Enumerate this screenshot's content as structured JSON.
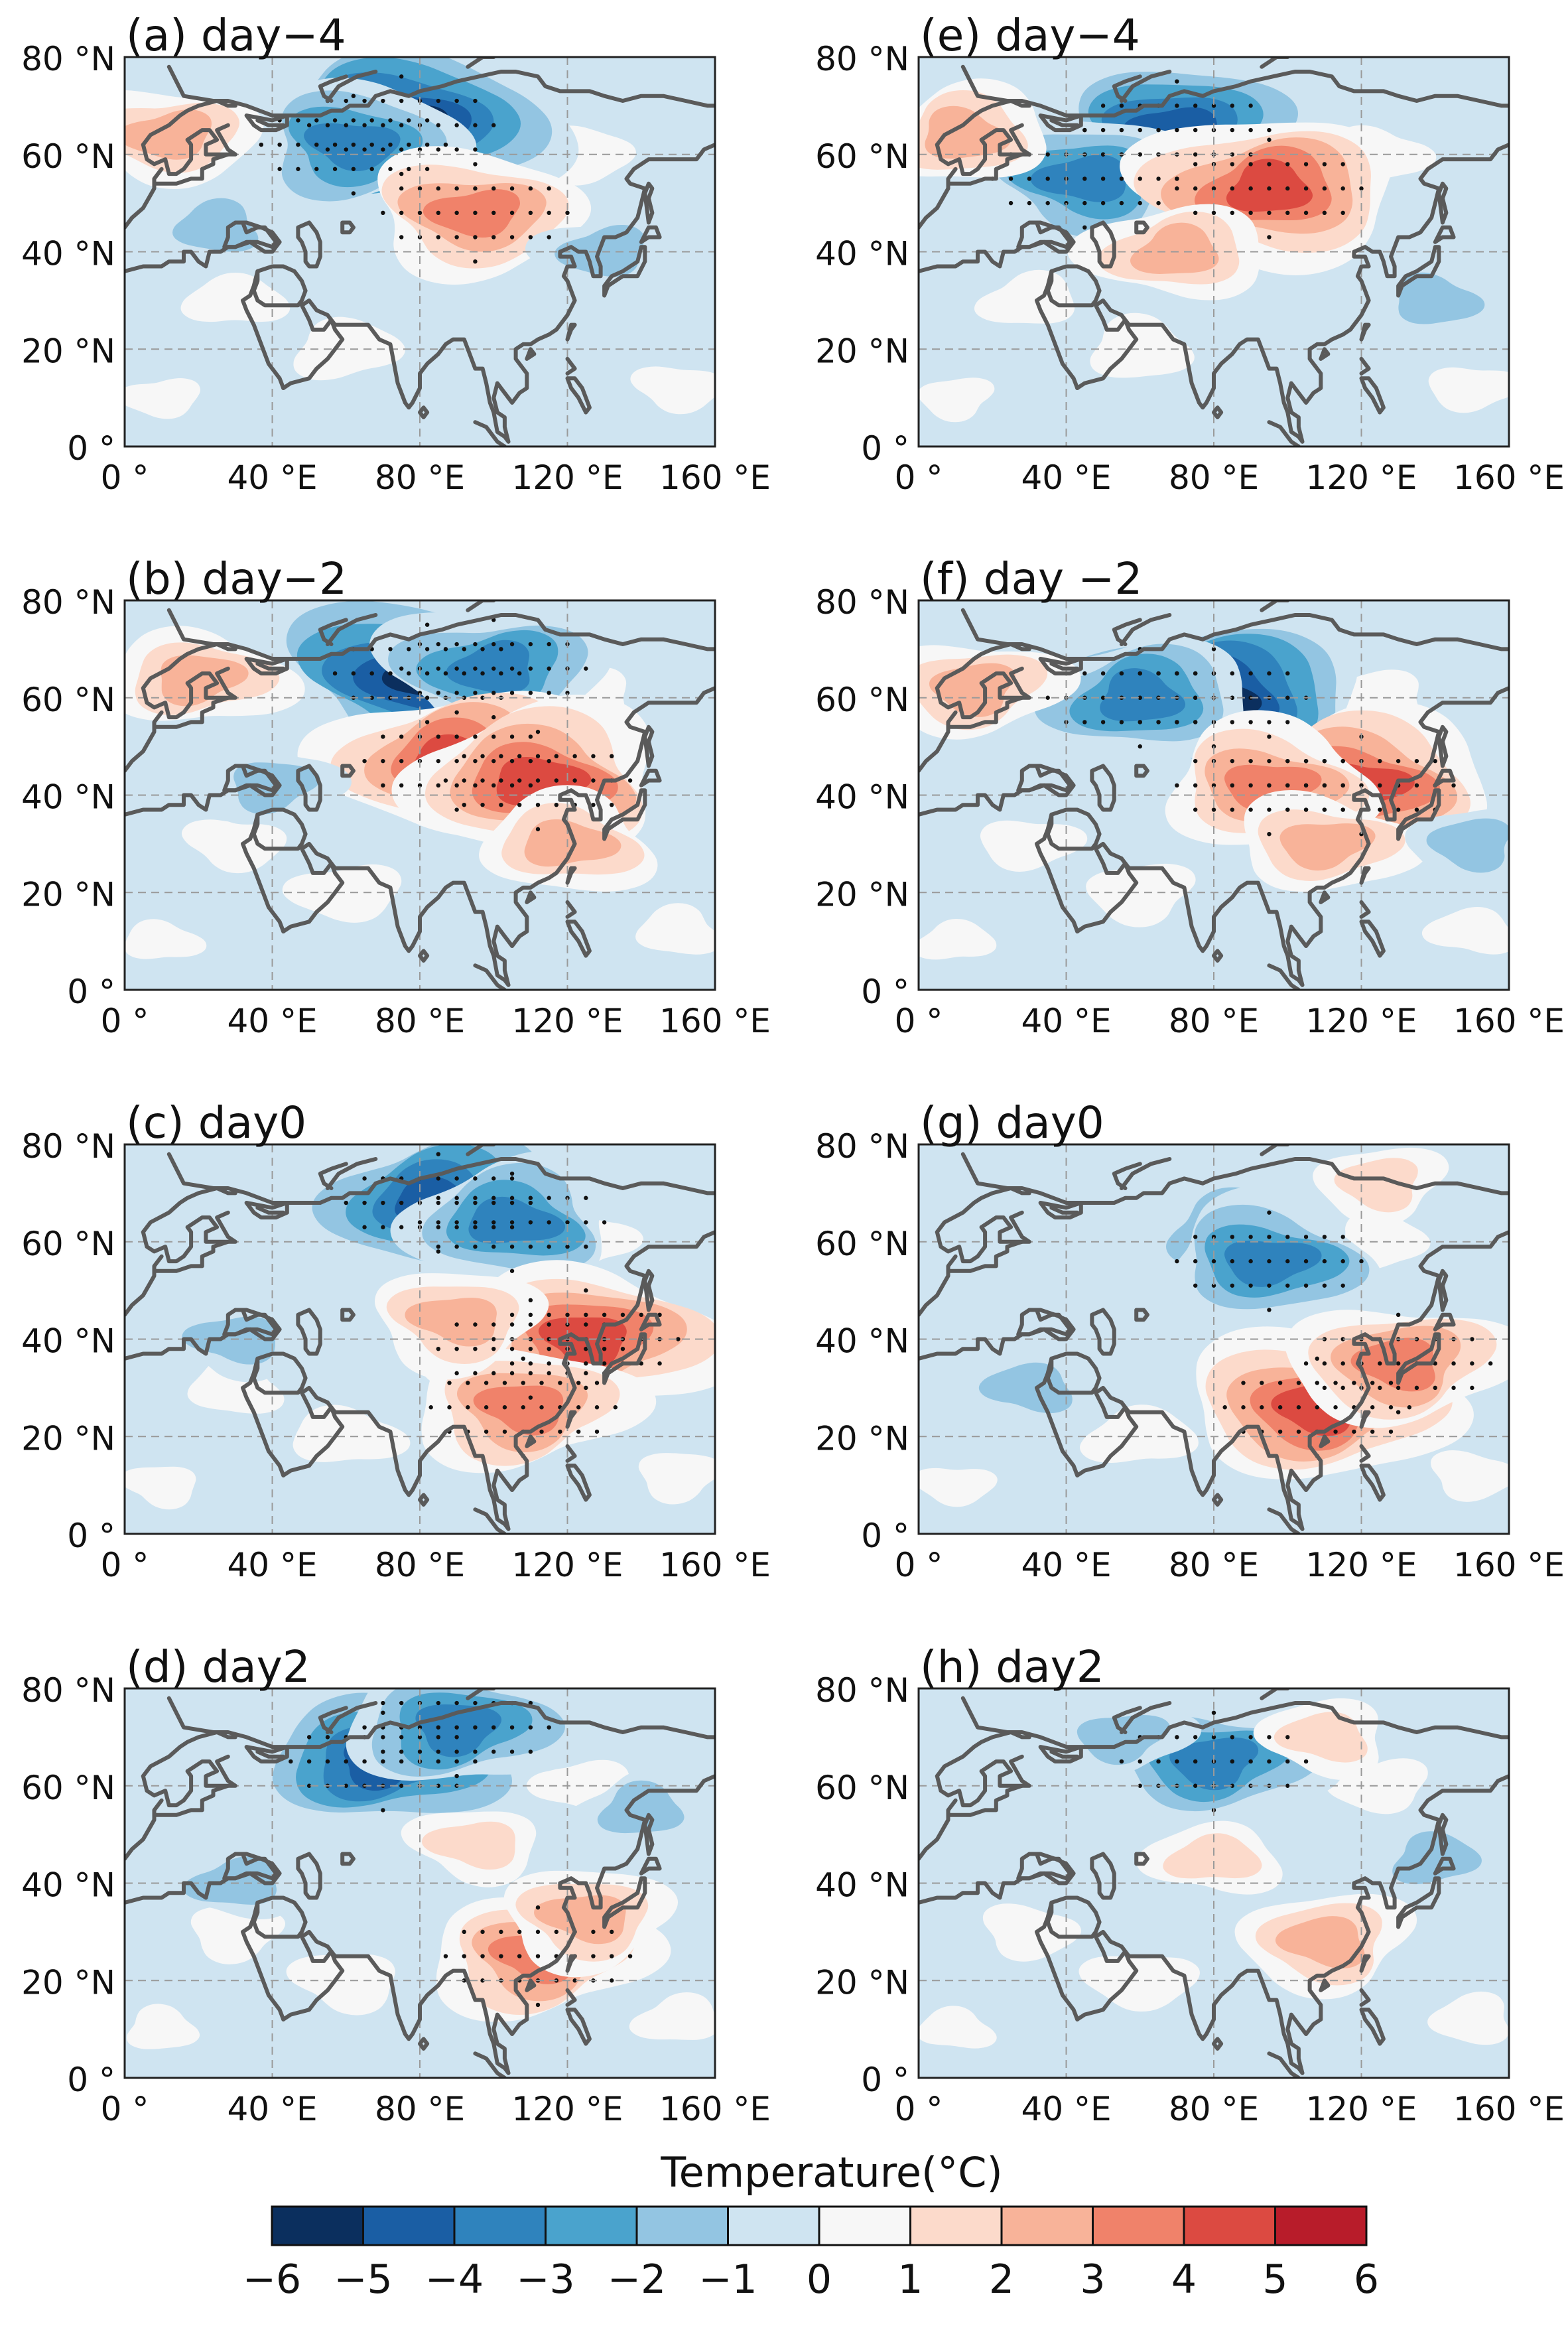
{
  "figure": {
    "colorbar_title": "Temperature(°C)",
    "colorbar_levels": [
      -6,
      -5,
      -4,
      -3,
      -2,
      -1,
      0,
      1,
      2,
      3,
      4,
      5,
      6
    ],
    "colorbar_tick_labels": [
      "−6",
      "−5",
      "−4",
      "−3",
      "−2",
      "−1",
      "0",
      "1",
      "2",
      "3",
      "4",
      "5",
      "6"
    ],
    "colorbar_colors": [
      "#0b2f5e",
      "#1a5ea4",
      "#2f83bd",
      "#4aa3cd",
      "#93c5e2",
      "#cfe4f1",
      "#f7f7f7",
      "#fcdacb",
      "#f8b399",
      "#f0826a",
      "#dc4a41",
      "#b81c2a"
    ]
  },
  "chart_data": [
    {
      "type": "heatmap",
      "panel": "a",
      "title": "(a) day−4",
      "xlabel": "",
      "ylabel": "",
      "x_ticks": [
        0,
        40,
        80,
        120,
        160
      ],
      "x_tick_labels": [
        "0 °",
        "40 °E",
        "80 °E",
        "120 °E",
        "160 °E"
      ],
      "y_ticks": [
        0,
        20,
        40,
        60,
        80
      ],
      "y_tick_labels": [
        "0 °",
        "20 °N",
        "40 °N",
        "60 °N",
        "80 °N"
      ],
      "xlim": [
        0,
        160
      ],
      "ylim": [
        0,
        80
      ],
      "grid": true,
      "anomaly_centers": [
        {
          "lon": 75,
          "lat": 66,
          "value": -5.5
        },
        {
          "lon": 62,
          "lat": 62,
          "value": -3
        },
        {
          "lon": 95,
          "lat": 48,
          "value": 3.5
        },
        {
          "lon": 12,
          "lat": 64,
          "value": 2
        },
        {
          "lon": 130,
          "lat": 40,
          "value": -1
        },
        {
          "lon": 25,
          "lat": 45,
          "value": -1
        }
      ]
    },
    {
      "type": "heatmap",
      "panel": "b",
      "title": "(b) day−2",
      "xlabel": "",
      "ylabel": "",
      "x_ticks": [
        0,
        40,
        80,
        120,
        160
      ],
      "x_tick_labels": [
        "0 °",
        "40 °E",
        "80 °E",
        "120 °E",
        "160 °E"
      ],
      "y_ticks": [
        0,
        20,
        40,
        60,
        80
      ],
      "y_tick_labels": [
        "0 °",
        "20 °N",
        "40 °N",
        "60 °N",
        "80 °N"
      ],
      "xlim": [
        0,
        160
      ],
      "ylim": [
        0,
        80
      ],
      "grid": true,
      "anomaly_centers": [
        {
          "lon": 82,
          "lat": 65,
          "value": -5.8
        },
        {
          "lon": 100,
          "lat": 66,
          "value": -3
        },
        {
          "lon": 90,
          "lat": 47,
          "value": 4.5
        },
        {
          "lon": 112,
          "lat": 43,
          "value": 4
        },
        {
          "lon": 120,
          "lat": 30,
          "value": 2
        },
        {
          "lon": 20,
          "lat": 64,
          "value": 2
        },
        {
          "lon": 40,
          "lat": 42,
          "value": -1.5
        }
      ]
    },
    {
      "type": "heatmap",
      "panel": "c",
      "title": "(c) day0",
      "xlabel": "",
      "ylabel": "",
      "x_ticks": [
        0,
        40,
        80,
        120,
        160
      ],
      "x_tick_labels": [
        "0 °",
        "40 °E",
        "80 °E",
        "120 °E",
        "160 °E"
      ],
      "y_ticks": [
        0,
        20,
        40,
        60,
        80
      ],
      "y_tick_labels": [
        "0 °",
        "20 °N",
        "40 °N",
        "60 °N",
        "80 °N"
      ],
      "xlim": [
        0,
        160
      ],
      "ylim": [
        0,
        80
      ],
      "grid": true,
      "anomaly_centers": [
        {
          "lon": 85,
          "lat": 68,
          "value": -4.5
        },
        {
          "lon": 105,
          "lat": 64,
          "value": -3
        },
        {
          "lon": 110,
          "lat": 38,
          "value": 3.5
        },
        {
          "lon": 125,
          "lat": 40,
          "value": 4.5
        },
        {
          "lon": 108,
          "lat": 26,
          "value": 3
        },
        {
          "lon": 90,
          "lat": 44,
          "value": 2
        },
        {
          "lon": 30,
          "lat": 40,
          "value": -1.5
        }
      ]
    },
    {
      "type": "heatmap",
      "panel": "d",
      "title": "(d) day2",
      "xlabel": "",
      "ylabel": "",
      "x_ticks": [
        0,
        40,
        80,
        120,
        160
      ],
      "x_tick_labels": [
        "0 °",
        "40 °E",
        "80 °E",
        "120 °E",
        "160 °E"
      ],
      "y_ticks": [
        0,
        20,
        40,
        60,
        80
      ],
      "y_tick_labels": [
        "0 °",
        "20 °N",
        "40 °N",
        "60 °N",
        "80 °N"
      ],
      "xlim": [
        0,
        160
      ],
      "ylim": [
        0,
        80
      ],
      "grid": true,
      "anomaly_centers": [
        {
          "lon": 70,
          "lat": 65,
          "value": -4.8
        },
        {
          "lon": 90,
          "lat": 72,
          "value": -3
        },
        {
          "lon": 112,
          "lat": 25,
          "value": 3.5
        },
        {
          "lon": 125,
          "lat": 33,
          "value": 2
        },
        {
          "lon": 95,
          "lat": 48,
          "value": 1.5
        },
        {
          "lon": 30,
          "lat": 40,
          "value": -1.5
        },
        {
          "lon": 140,
          "lat": 55,
          "value": -1
        }
      ]
    },
    {
      "type": "heatmap",
      "panel": "e",
      "title": "(e) day−4",
      "xlabel": "",
      "ylabel": "",
      "x_ticks": [
        0,
        40,
        80,
        120,
        160
      ],
      "x_tick_labels": [
        "0 °",
        "40 °E",
        "80 °E",
        "120 °E",
        "160 °E"
      ],
      "y_ticks": [
        0,
        20,
        40,
        60,
        80
      ],
      "y_tick_labels": [
        "0 °",
        "20 °N",
        "40 °N",
        "60 °N",
        "80 °N"
      ],
      "xlim": [
        0,
        160
      ],
      "ylim": [
        0,
        80
      ],
      "grid": true,
      "anomaly_centers": [
        {
          "lon": 70,
          "lat": 65,
          "value": -4.5
        },
        {
          "lon": 45,
          "lat": 55,
          "value": -3
        },
        {
          "lon": 95,
          "lat": 53,
          "value": 4
        },
        {
          "lon": 70,
          "lat": 40,
          "value": 2
        },
        {
          "lon": 12,
          "lat": 64,
          "value": 2
        },
        {
          "lon": 140,
          "lat": 30,
          "value": -1
        }
      ]
    },
    {
      "type": "heatmap",
      "panel": "f",
      "title": "(f) day −2",
      "xlabel": "",
      "ylabel": "",
      "x_ticks": [
        0,
        40,
        80,
        120,
        160
      ],
      "x_tick_labels": [
        "0 °",
        "40 °E",
        "80 °E",
        "120 °E",
        "160 °E"
      ],
      "y_ticks": [
        0,
        20,
        40,
        60,
        80
      ],
      "y_tick_labels": [
        "0 °",
        "20 °N",
        "40 °N",
        "60 °N",
        "80 °N"
      ],
      "xlim": [
        0,
        160
      ],
      "ylim": [
        0,
        80
      ],
      "grid": true,
      "anomaly_centers": [
        {
          "lon": 80,
          "lat": 60,
          "value": -5.5
        },
        {
          "lon": 60,
          "lat": 60,
          "value": -3
        },
        {
          "lon": 120,
          "lat": 42,
          "value": 4
        },
        {
          "lon": 95,
          "lat": 42,
          "value": 3
        },
        {
          "lon": 110,
          "lat": 30,
          "value": 2
        },
        {
          "lon": 15,
          "lat": 62,
          "value": 2
        },
        {
          "lon": 150,
          "lat": 30,
          "value": -1
        }
      ]
    },
    {
      "type": "heatmap",
      "panel": "g",
      "title": "(g) day0",
      "xlabel": "",
      "ylabel": "",
      "x_ticks": [
        0,
        40,
        80,
        120,
        160
      ],
      "x_tick_labels": [
        "0 °",
        "40 °E",
        "80 °E",
        "120 °E",
        "160 °E"
      ],
      "y_ticks": [
        0,
        20,
        40,
        60,
        80
      ],
      "y_tick_labels": [
        "0 °",
        "20 °N",
        "40 °N",
        "60 °N",
        "80 °N"
      ],
      "xlim": [
        0,
        160
      ],
      "ylim": [
        0,
        80
      ],
      "grid": true,
      "anomaly_centers": [
        {
          "lon": 85,
          "lat": 62,
          "value": -2.5
        },
        {
          "lon": 95,
          "lat": 56,
          "value": -3
        },
        {
          "lon": 108,
          "lat": 26,
          "value": 4.2
        },
        {
          "lon": 130,
          "lat": 35,
          "value": 3
        },
        {
          "lon": 125,
          "lat": 72,
          "value": 1.5
        },
        {
          "lon": 30,
          "lat": 30,
          "value": -1
        }
      ]
    },
    {
      "type": "heatmap",
      "panel": "h",
      "title": "(h) day2",
      "xlabel": "",
      "ylabel": "",
      "x_ticks": [
        0,
        40,
        80,
        120,
        160
      ],
      "x_tick_labels": [
        "0 °",
        "40 °E",
        "80 °E",
        "120 °E",
        "160 °E"
      ],
      "y_ticks": [
        0,
        20,
        40,
        60,
        80
      ],
      "y_tick_labels": [
        "0 °",
        "20 °N",
        "40 °N",
        "60 °N",
        "80 °N"
      ],
      "xlim": [
        0,
        160
      ],
      "ylim": [
        0,
        80
      ],
      "grid": true,
      "anomaly_centers": [
        {
          "lon": 80,
          "lat": 65,
          "value": -3
        },
        {
          "lon": 55,
          "lat": 70,
          "value": -1.5
        },
        {
          "lon": 110,
          "lat": 28,
          "value": 2
        },
        {
          "lon": 110,
          "lat": 70,
          "value": 1.5
        },
        {
          "lon": 80,
          "lat": 45,
          "value": 1.5
        },
        {
          "lon": 140,
          "lat": 45,
          "value": -1
        }
      ]
    }
  ]
}
